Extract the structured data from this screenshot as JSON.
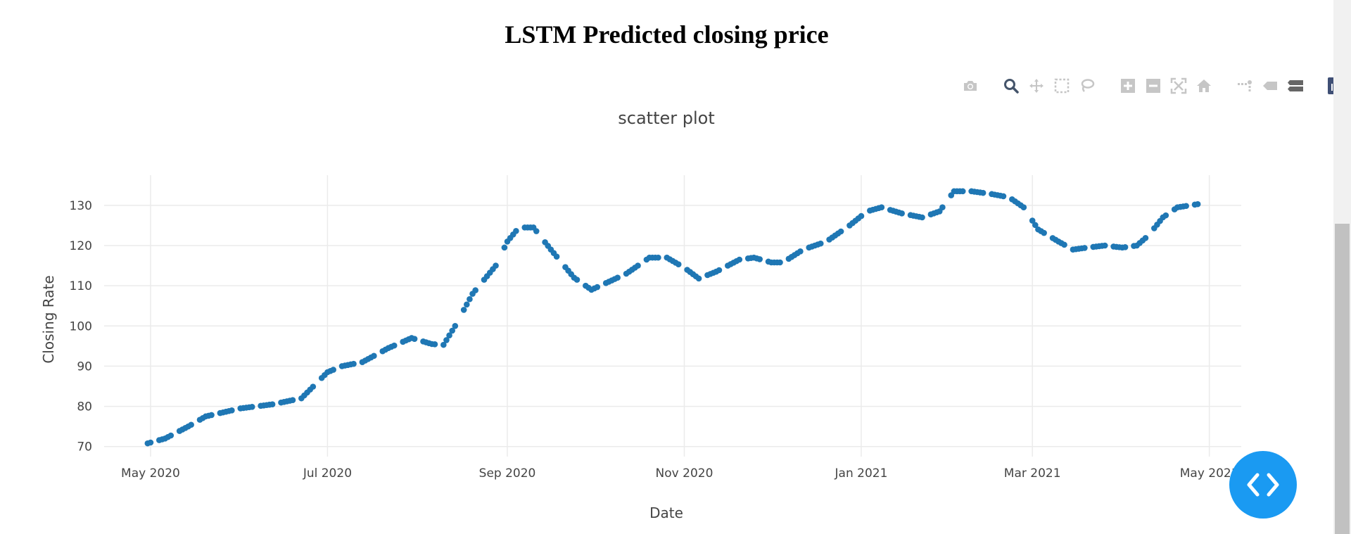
{
  "page": {
    "title": "LSTM Predicted closing price"
  },
  "modebar": {
    "icons": [
      "camera-icon",
      "zoom-icon",
      "pan-icon",
      "box-select-icon",
      "lasso-select-icon",
      "zoom-in-icon",
      "zoom-out-icon",
      "autoscale-icon",
      "reset-axes-icon",
      "spike-lines-icon",
      "hover-closest-icon",
      "hover-compare-icon",
      "plotly-logo-icon"
    ],
    "colors": {
      "inactive": "#c6c6c6",
      "active": "#44546a",
      "logo": "#3f4f75"
    }
  },
  "chart_data": {
    "type": "scatter",
    "title": "scatter plot",
    "xlabel": "Date",
    "ylabel": "Closing Rate",
    "xlim": [
      "2020-04-15",
      "2021-05-12"
    ],
    "ylim": [
      67.5,
      137.5
    ],
    "x_ticks": [
      "2020-05-01",
      "2020-07-01",
      "2020-09-01",
      "2020-11-01",
      "2021-01-01",
      "2021-03-01",
      "2021-05-01"
    ],
    "x_tick_labels": [
      "May 2020",
      "Jul 2020",
      "Sep 2020",
      "Nov 2020",
      "Jan 2021",
      "Mar 2021",
      "May 2021"
    ],
    "y_ticks": [
      70,
      80,
      90,
      100,
      110,
      120,
      130
    ],
    "y_tick_labels": [
      "70",
      "80",
      "90",
      "100",
      "110",
      "120",
      "130"
    ],
    "grid": true,
    "marker_color": "#1f77b4",
    "series": [
      {
        "start_date": "2020-04-30",
        "end_date": "2021-04-27",
        "keypoints": [
          [
            "2020-04-30",
            70.8
          ],
          [
            "2020-05-06",
            72.0
          ],
          [
            "2020-05-14",
            75.0
          ],
          [
            "2020-05-20",
            77.5
          ],
          [
            "2020-06-01",
            79.5
          ],
          [
            "2020-06-12",
            80.5
          ],
          [
            "2020-06-22",
            82.0
          ],
          [
            "2020-07-01",
            88.5
          ],
          [
            "2020-07-06",
            90.0
          ],
          [
            "2020-07-13",
            91.0
          ],
          [
            "2020-07-22",
            94.5
          ],
          [
            "2020-07-30",
            97.0
          ],
          [
            "2020-08-06",
            95.5
          ],
          [
            "2020-08-10",
            95.3
          ],
          [
            "2020-08-14",
            100.0
          ],
          [
            "2020-08-20",
            108.0
          ],
          [
            "2020-08-28",
            115.0
          ],
          [
            "2020-09-01",
            121.0
          ],
          [
            "2020-09-05",
            124.5
          ],
          [
            "2020-09-10",
            124.5
          ],
          [
            "2020-09-16",
            119.0
          ],
          [
            "2020-09-24",
            112.0
          ],
          [
            "2020-09-30",
            109.0
          ],
          [
            "2020-10-06",
            111.0
          ],
          [
            "2020-10-12",
            113.0
          ],
          [
            "2020-10-20",
            117.0
          ],
          [
            "2020-10-26",
            117.0
          ],
          [
            "2020-11-01",
            114.5
          ],
          [
            "2020-11-06",
            111.8
          ],
          [
            "2020-11-12",
            113.5
          ],
          [
            "2020-11-20",
            116.5
          ],
          [
            "2020-11-25",
            117.0
          ],
          [
            "2020-12-01",
            115.8
          ],
          [
            "2020-12-05",
            115.8
          ],
          [
            "2020-12-12",
            119.0
          ],
          [
            "2020-12-20",
            121.0
          ],
          [
            "2020-12-28",
            125.0
          ],
          [
            "2021-01-03",
            128.5
          ],
          [
            "2021-01-08",
            129.5
          ],
          [
            "2021-01-15",
            128.0
          ],
          [
            "2021-01-22",
            127.0
          ],
          [
            "2021-01-28",
            128.5
          ],
          [
            "2021-02-02",
            133.5
          ],
          [
            "2021-02-08",
            133.5
          ],
          [
            "2021-02-15",
            132.8
          ],
          [
            "2021-02-21",
            132.0
          ],
          [
            "2021-02-26",
            129.5
          ],
          [
            "2021-03-03",
            124.0
          ],
          [
            "2021-03-10",
            121.0
          ],
          [
            "2021-03-15",
            119.0
          ],
          [
            "2021-03-20",
            119.5
          ],
          [
            "2021-03-26",
            120.0
          ],
          [
            "2021-04-01",
            119.5
          ],
          [
            "2021-04-06",
            120.0
          ],
          [
            "2021-04-10",
            122.5
          ],
          [
            "2021-04-15",
            127.0
          ],
          [
            "2021-04-20",
            129.5
          ],
          [
            "2021-04-27",
            130.3
          ]
        ]
      }
    ]
  }
}
